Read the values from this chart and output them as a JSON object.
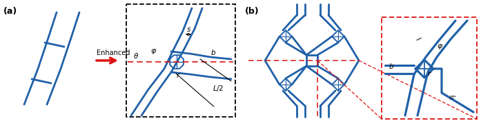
{
  "fig_width": 6.97,
  "fig_height": 1.76,
  "dpi": 100,
  "background": "#ffffff",
  "blue_color": "#2060A8",
  "red_color": "#DD1111",
  "label_a": "(a)",
  "label_b": "(b)",
  "arrow_text": "Enhanced"
}
